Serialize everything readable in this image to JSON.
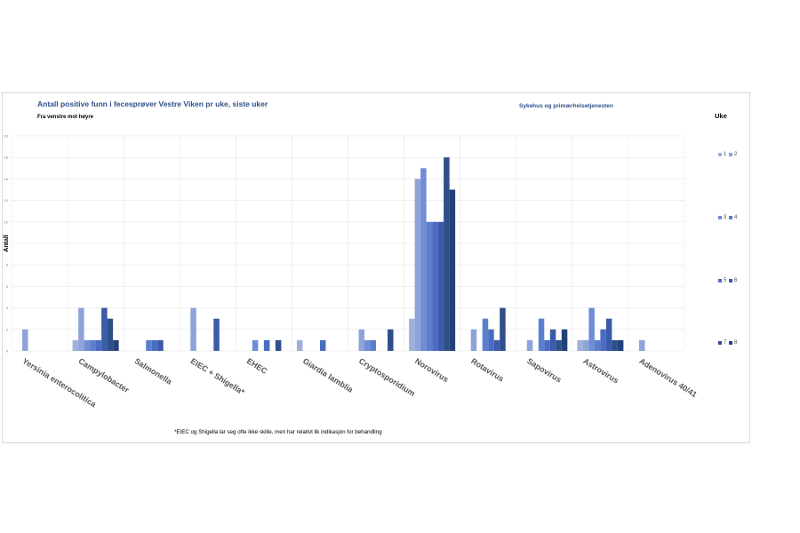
{
  "header": {
    "title": "Antall positive funn i fecesprøver Vestre Viken pr uke, siste uker",
    "subtitle": "Fra venstre mot høyre",
    "scope": "Sykehus og primærhelsetjenesten",
    "legend_title": "Uke"
  },
  "footnote": "*EIEC og Shigella lar seg ofte ikke skille, men har relativt lik indikasjon for behandling",
  "colors": [
    "#9fb0dd",
    "#8ea3d8",
    "#6f8cd4",
    "#5a7fcc",
    "#4a6cc3",
    "#3b5ba8",
    "#2e4f8a",
    "#23407a"
  ],
  "chart_data": {
    "type": "bar",
    "title": "Antall positive funn i fecesprøver Vestre Viken pr uke, siste uker",
    "xlabel": "",
    "ylabel": "Antall",
    "ylim": [
      0,
      20
    ],
    "yticks": [
      0,
      2,
      4,
      6,
      8,
      10,
      12,
      14,
      16,
      18,
      20
    ],
    "grid": true,
    "legend_position": "right",
    "categories": [
      "Yersinia enterocolitica",
      "Campylobacter",
      "Salmonella",
      "EIEC + Shigella*",
      "EHEC",
      "Giardia lamblia",
      "Cryptosporidium",
      "Norovirus",
      "Rotavirus",
      "Sapovirus",
      "Astrovirus",
      "Adenovirus 40/41"
    ],
    "series": [
      {
        "name": "1",
        "values": [
          0,
          1,
          0,
          0,
          0,
          1,
          0,
          3,
          0,
          0,
          1,
          0
        ]
      },
      {
        "name": "2",
        "values": [
          2,
          4,
          0,
          4,
          0,
          0,
          2,
          16,
          2,
          1,
          1,
          1
        ]
      },
      {
        "name": "3",
        "values": [
          0,
          1,
          0,
          0,
          1,
          0,
          1,
          17,
          0,
          0,
          4,
          0
        ]
      },
      {
        "name": "4",
        "values": [
          0,
          1,
          1,
          0,
          0,
          0,
          1,
          12,
          3,
          3,
          1,
          0
        ]
      },
      {
        "name": "5",
        "values": [
          0,
          1,
          1,
          0,
          1,
          1,
          0,
          12,
          2,
          1,
          2,
          0
        ]
      },
      {
        "name": "6",
        "values": [
          0,
          4,
          1,
          3,
          0,
          0,
          0,
          12,
          1,
          2,
          3,
          0
        ]
      },
      {
        "name": "7",
        "values": [
          0,
          3,
          0,
          0,
          1,
          0,
          2,
          18,
          4,
          1,
          1,
          0
        ]
      },
      {
        "name": "8",
        "values": [
          0,
          1,
          0,
          0,
          0,
          0,
          0,
          15,
          0,
          2,
          1,
          0
        ]
      }
    ]
  }
}
